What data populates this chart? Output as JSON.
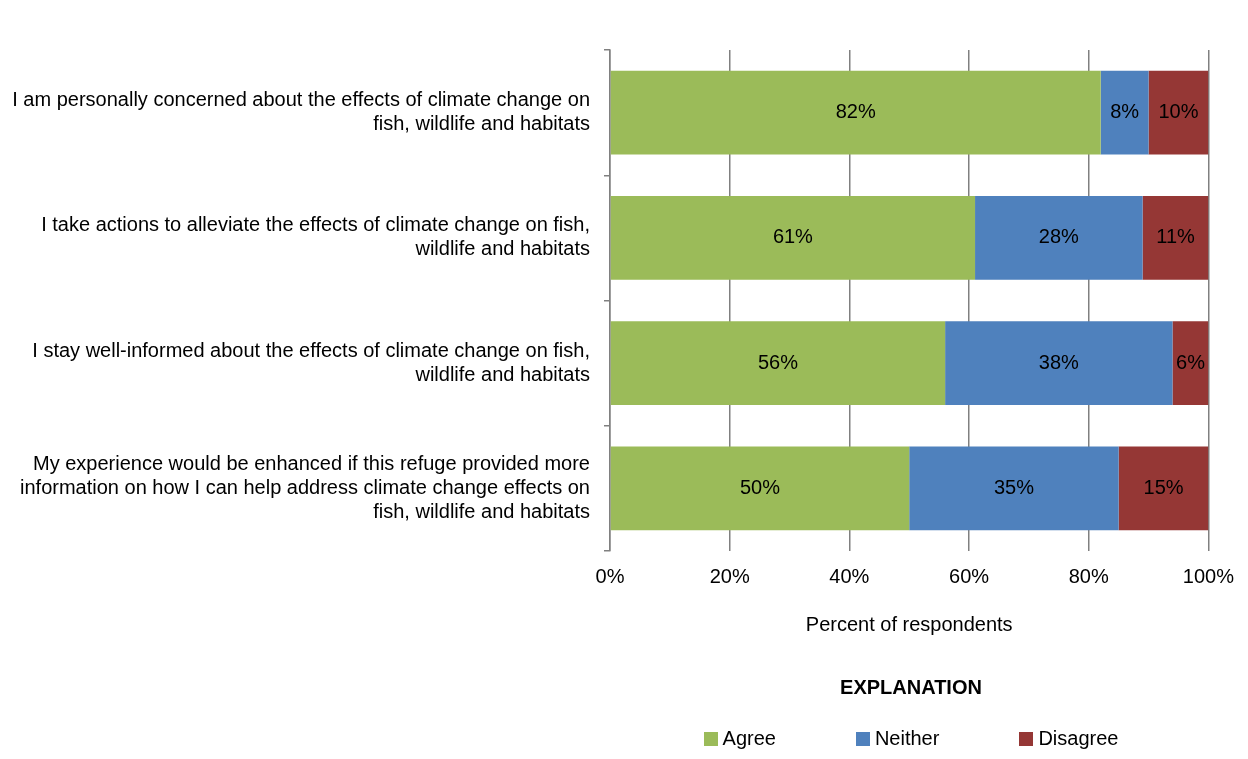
{
  "chart_data": {
    "type": "bar",
    "orientation": "horizontal",
    "stacked": true,
    "categories": [
      "I am personally concerned about the effects of climate change on fish, wildlife and habitats",
      "I take actions to alleviate the effects of climate change on fish, wildlife and habitats",
      "I stay well-informed about the effects of climate change on fish, wildlife and habitats",
      "My experience would be enhanced if this refuge provided more information on how I can help address climate change effects on fish, wildlife and habitats"
    ],
    "series": [
      {
        "name": "Agree",
        "color": "#9bbb59",
        "values": [
          82,
          61,
          56,
          50
        ],
        "value_labels": [
          "82%",
          "61%",
          "56%",
          "50%"
        ]
      },
      {
        "name": "Neither",
        "color": "#4f81bd",
        "values": [
          8,
          28,
          38,
          35
        ],
        "value_labels": [
          "8%",
          "28%",
          "38%",
          "35%"
        ]
      },
      {
        "name": "Disagree",
        "color": "#953735",
        "values": [
          10,
          11,
          6,
          15
        ],
        "value_labels": [
          "10%",
          "11%",
          "6%",
          "15%"
        ]
      }
    ],
    "xlim": [
      0,
      100
    ],
    "xticks": [
      {
        "value": 0,
        "label": "0%"
      },
      {
        "value": 20,
        "label": "20%"
      },
      {
        "value": 40,
        "label": "40%"
      },
      {
        "value": 60,
        "label": "60%"
      },
      {
        "value": 80,
        "label": "80%"
      },
      {
        "value": 100,
        "label": "100%"
      }
    ],
    "xlabel": "Percent of respondents",
    "legend_title": "EXPLANATION",
    "legend": "bottom",
    "grid": "x"
  }
}
